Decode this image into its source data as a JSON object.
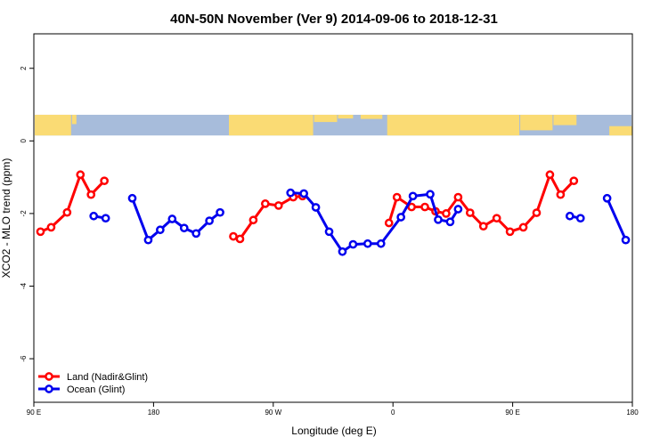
{
  "chart_data": {
    "type": "line",
    "title": "40N-50N November (Ver 9)   2014-09-06 to 2018-12-31",
    "xlabel": "Longitude (deg E)",
    "ylabel": "XCO2 - MLO trend (ppm)",
    "xlim": [
      90,
      540
    ],
    "ylim": [
      -7.2,
      2.95
    ],
    "x_ticks": [
      {
        "value": 90,
        "label": "90 E"
      },
      {
        "value": 180,
        "label": "180"
      },
      {
        "value": 270,
        "label": "90 W"
      },
      {
        "value": 360,
        "label": "0"
      },
      {
        "value": 450,
        "label": "90 E"
      },
      {
        "value": 540,
        "label": "180"
      }
    ],
    "y_ticks": [
      2,
      0,
      -2,
      -4,
      -6
    ],
    "grid": false,
    "legend_position": "bottom-left",
    "map_strip": {
      "y_range": [
        0.15,
        0.72
      ],
      "land_color": "#FADB74",
      "ocean_color": "#A7BCDB"
    },
    "series": [
      {
        "name": "Land (Nadir&Glint)",
        "color": "#FF0000",
        "segments": [
          [
            [
              95,
              -2.5
            ],
            [
              103,
              -2.38
            ],
            [
              115,
              -1.97
            ],
            [
              125,
              -0.93
            ],
            [
              133,
              -1.48
            ],
            [
              143,
              -1.1
            ]
          ],
          [
            [
              240,
              -2.63
            ],
            [
              245,
              -2.7
            ],
            [
              255,
              -2.18
            ],
            [
              264,
              -1.73
            ],
            [
              274,
              -1.78
            ],
            [
              285,
              -1.55
            ],
            [
              292,
              -1.52
            ]
          ],
          [
            [
              357,
              -2.26
            ],
            [
              363,
              -1.55
            ],
            [
              374,
              -1.82
            ],
            [
              384,
              -1.82
            ],
            [
              392,
              -1.94
            ],
            [
              400,
              -2.0
            ],
            [
              409,
              -1.55
            ],
            [
              418,
              -1.98
            ],
            [
              428,
              -2.35
            ],
            [
              438,
              -2.13
            ],
            [
              448,
              -2.5
            ],
            [
              458,
              -2.38
            ],
            [
              468,
              -1.98
            ],
            [
              478,
              -0.93
            ],
            [
              486,
              -1.48
            ],
            [
              496,
              -1.1
            ]
          ]
        ]
      },
      {
        "name": "Ocean (Glint)",
        "color": "#0000EE",
        "segments": [
          [
            [
              135,
              -2.07
            ],
            [
              144,
              -2.13
            ]
          ],
          [
            [
              164,
              -1.58
            ],
            [
              176,
              -2.73
            ],
            [
              185,
              -2.45
            ],
            [
              194,
              -2.15
            ],
            [
              203,
              -2.4
            ],
            [
              212,
              -2.55
            ],
            [
              222,
              -2.2
            ],
            [
              230,
              -1.97
            ]
          ],
          [
            [
              283,
              -1.43
            ],
            [
              293,
              -1.45
            ],
            [
              302,
              -1.83
            ],
            [
              312,
              -2.5
            ],
            [
              322,
              -3.05
            ],
            [
              330,
              -2.85
            ],
            [
              341,
              -2.83
            ],
            [
              351,
              -2.83
            ],
            [
              366,
              -2.1
            ],
            [
              375,
              -1.52
            ],
            [
              388,
              -1.47
            ],
            [
              394,
              -2.17
            ],
            [
              403,
              -2.23
            ],
            [
              409,
              -1.88
            ]
          ],
          [
            [
              493,
              -2.07
            ],
            [
              501,
              -2.13
            ]
          ],
          [
            [
              521,
              -1.58
            ],
            [
              535,
              -2.73
            ]
          ]
        ]
      }
    ]
  }
}
